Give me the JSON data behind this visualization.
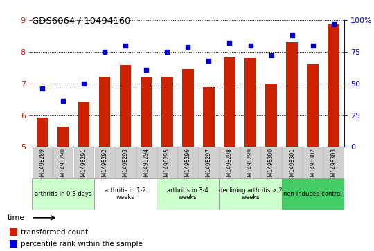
{
  "title": "GDS6064 / 10494160",
  "samples": [
    "GSM1498289",
    "GSM1498290",
    "GSM1498291",
    "GSM1498292",
    "GSM1498293",
    "GSM1498294",
    "GSM1498295",
    "GSM1498296",
    "GSM1498297",
    "GSM1498298",
    "GSM1498299",
    "GSM1498300",
    "GSM1498301",
    "GSM1498302",
    "GSM1498303"
  ],
  "bar_values": [
    5.93,
    5.65,
    6.42,
    7.22,
    7.58,
    7.2,
    7.22,
    7.46,
    6.88,
    7.82,
    7.79,
    7.0,
    8.3,
    7.6,
    8.88
  ],
  "dot_values_pct": [
    46,
    36,
    50,
    75,
    80,
    61,
    75,
    79,
    68,
    82,
    80,
    72,
    88,
    80,
    97
  ],
  "bar_color": "#cc2200",
  "dot_color": "#0000cc",
  "ylim_left": [
    5,
    9
  ],
  "ylim_right": [
    0,
    100
  ],
  "yticks_left": [
    5,
    6,
    7,
    8,
    9
  ],
  "yticks_right": [
    0,
    25,
    50,
    75,
    100
  ],
  "groups": [
    {
      "label": "arthritis in 0-3 days",
      "start": 0,
      "end": 3,
      "color": "#ccffcc"
    },
    {
      "label": "arthritis in 1-2\nweeks",
      "start": 3,
      "end": 6,
      "color": "#ffffff"
    },
    {
      "label": "arthritis in 3-4\nweeks",
      "start": 6,
      "end": 9,
      "color": "#ccffcc"
    },
    {
      "label": "declining arthritis > 2\nweeks",
      "start": 9,
      "end": 12,
      "color": "#ccffcc"
    },
    {
      "label": "non-induced control",
      "start": 12,
      "end": 15,
      "color": "#44cc66"
    }
  ],
  "legend_bar_label": "transformed count",
  "legend_dot_label": "percentile rank within the sample",
  "time_label": "time",
  "bar_width": 0.55
}
